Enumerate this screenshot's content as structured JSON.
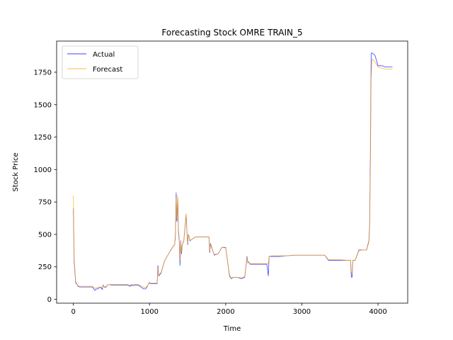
{
  "chart_data": {
    "type": "line",
    "title": "Forecasting Stock OMRE TRAIN_5",
    "xlabel": "Time",
    "ylabel": "Stock Price",
    "xlim": [
      -220,
      4390
    ],
    "ylim": [
      -30,
      1990
    ],
    "xticks": [
      0,
      1000,
      2000,
      3000,
      4000
    ],
    "yticks": [
      0,
      250,
      500,
      750,
      1000,
      1250,
      1500,
      1750
    ],
    "grid": false,
    "legend_position": "upper left",
    "series": [
      {
        "name": "Actual",
        "color": "#0000ff",
        "x": [
          0,
          5,
          10,
          20,
          30,
          40,
          50,
          55,
          60,
          80,
          100,
          150,
          200,
          250,
          280,
          290,
          300,
          320,
          340,
          360,
          380,
          390,
          400,
          420,
          450,
          480,
          500,
          550,
          600,
          700,
          750,
          760,
          780,
          800,
          850,
          900,
          920,
          950,
          1000,
          1010,
          1050,
          1100,
          1110,
          1120,
          1150,
          1200,
          1250,
          1300,
          1330,
          1340,
          1350,
          1355,
          1360,
          1370,
          1380,
          1390,
          1400,
          1410,
          1420,
          1430,
          1450,
          1480,
          1500,
          1510,
          1520,
          1530,
          1550,
          1600,
          1700,
          1780,
          1790,
          1800,
          1850,
          1900,
          1950,
          2000,
          2050,
          2070,
          2080,
          2100,
          2150,
          2200,
          2210,
          2250,
          2280,
          2290,
          2300,
          2320,
          2350,
          2400,
          2500,
          2540,
          2560,
          2570,
          2600,
          2700,
          2800,
          2900,
          3000,
          3100,
          3200,
          3300,
          3350,
          3380,
          3400,
          3500,
          3600,
          3640,
          3650,
          3660,
          3670,
          3700,
          3750,
          3800,
          3850,
          3880,
          3890,
          3900,
          3910,
          3920,
          3930,
          3940,
          3960,
          4000,
          4050,
          4100,
          4190
        ],
        "values": [
          700,
          500,
          300,
          210,
          130,
          120,
          115,
          110,
          100,
          95,
          95,
          95,
          95,
          95,
          70,
          70,
          80,
          80,
          90,
          90,
          75,
          110,
          100,
          90,
          110,
          115,
          110,
          110,
          110,
          110,
          100,
          110,
          105,
          110,
          110,
          90,
          80,
          80,
          130,
          120,
          120,
          120,
          260,
          180,
          200,
          300,
          350,
          400,
          420,
          500,
          820,
          620,
          600,
          780,
          520,
          450,
          260,
          450,
          350,
          420,
          450,
          650,
          420,
          500,
          480,
          450,
          460,
          480,
          480,
          480,
          360,
          430,
          340,
          350,
          400,
          400,
          180,
          160,
          160,
          170,
          170,
          160,
          160,
          170,
          330,
          280,
          290,
          270,
          270,
          270,
          270,
          270,
          180,
          330,
          330,
          330,
          335,
          340,
          340,
          340,
          340,
          340,
          300,
          300,
          300,
          300,
          300,
          300,
          170,
          170,
          300,
          300,
          380,
          380,
          380,
          450,
          560,
          1100,
          1895,
          1900,
          1895,
          1890,
          1880,
          1800,
          1800,
          1790,
          1790
        ]
      },
      {
        "name": "Forecast",
        "color": "#ffa500",
        "x": [
          0,
          5,
          10,
          20,
          30,
          40,
          50,
          55,
          60,
          80,
          100,
          150,
          200,
          250,
          280,
          290,
          300,
          320,
          340,
          360,
          380,
          390,
          400,
          420,
          450,
          480,
          500,
          550,
          600,
          700,
          750,
          760,
          780,
          800,
          850,
          900,
          920,
          950,
          1000,
          1010,
          1050,
          1100,
          1110,
          1120,
          1150,
          1200,
          1250,
          1300,
          1330,
          1340,
          1350,
          1355,
          1360,
          1370,
          1380,
          1390,
          1400,
          1410,
          1420,
          1430,
          1450,
          1480,
          1500,
          1510,
          1520,
          1530,
          1550,
          1600,
          1700,
          1780,
          1790,
          1800,
          1850,
          1900,
          1950,
          2000,
          2050,
          2070,
          2080,
          2100,
          2150,
          2200,
          2210,
          2250,
          2280,
          2290,
          2300,
          2320,
          2350,
          2400,
          2500,
          2540,
          2560,
          2570,
          2600,
          2700,
          2800,
          2900,
          3000,
          3100,
          3200,
          3300,
          3350,
          3380,
          3400,
          3500,
          3600,
          3640,
          3650,
          3660,
          3670,
          3700,
          3750,
          3800,
          3850,
          3880,
          3890,
          3900,
          3910,
          3920,
          3930,
          3940,
          3960,
          4000,
          4050,
          4100,
          4190
        ],
        "values": [
          800,
          550,
          330,
          230,
          140,
          125,
          118,
          112,
          105,
          100,
          100,
          100,
          100,
          100,
          85,
          85,
          90,
          90,
          95,
          95,
          90,
          105,
          100,
          95,
          110,
          115,
          115,
          115,
          115,
          115,
          110,
          115,
          110,
          115,
          115,
          100,
          95,
          90,
          125,
          125,
          125,
          125,
          240,
          190,
          205,
          300,
          350,
          400,
          420,
          480,
          780,
          640,
          620,
          800,
          540,
          470,
          300,
          440,
          370,
          420,
          450,
          660,
          430,
          500,
          480,
          455,
          460,
          480,
          480,
          480,
          370,
          420,
          345,
          350,
          400,
          395,
          190,
          165,
          165,
          170,
          170,
          165,
          165,
          175,
          320,
          285,
          290,
          275,
          275,
          275,
          275,
          275,
          275,
          330,
          335,
          335,
          335,
          340,
          340,
          340,
          340,
          340,
          305,
          305,
          305,
          305,
          300,
          300,
          210,
          200,
          300,
          300,
          375,
          380,
          380,
          440,
          540,
          1000,
          1700,
          1850,
          1850,
          1840,
          1830,
          1790,
          1780,
          1775,
          1775
        ]
      }
    ]
  }
}
